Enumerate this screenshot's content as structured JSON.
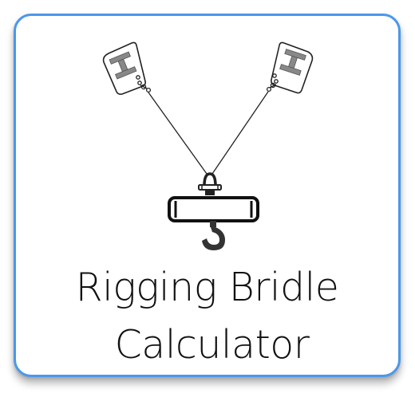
{
  "app_tile": {
    "title_line1": "Rigging Bridle",
    "title_line2": "Calculator",
    "border_color": "#4a98ea",
    "icon_names": [
      "beam-anchor-left-icon",
      "beam-anchor-right-icon",
      "shackle-icon",
      "spreader-beam-icon",
      "crane-hook-icon"
    ]
  }
}
